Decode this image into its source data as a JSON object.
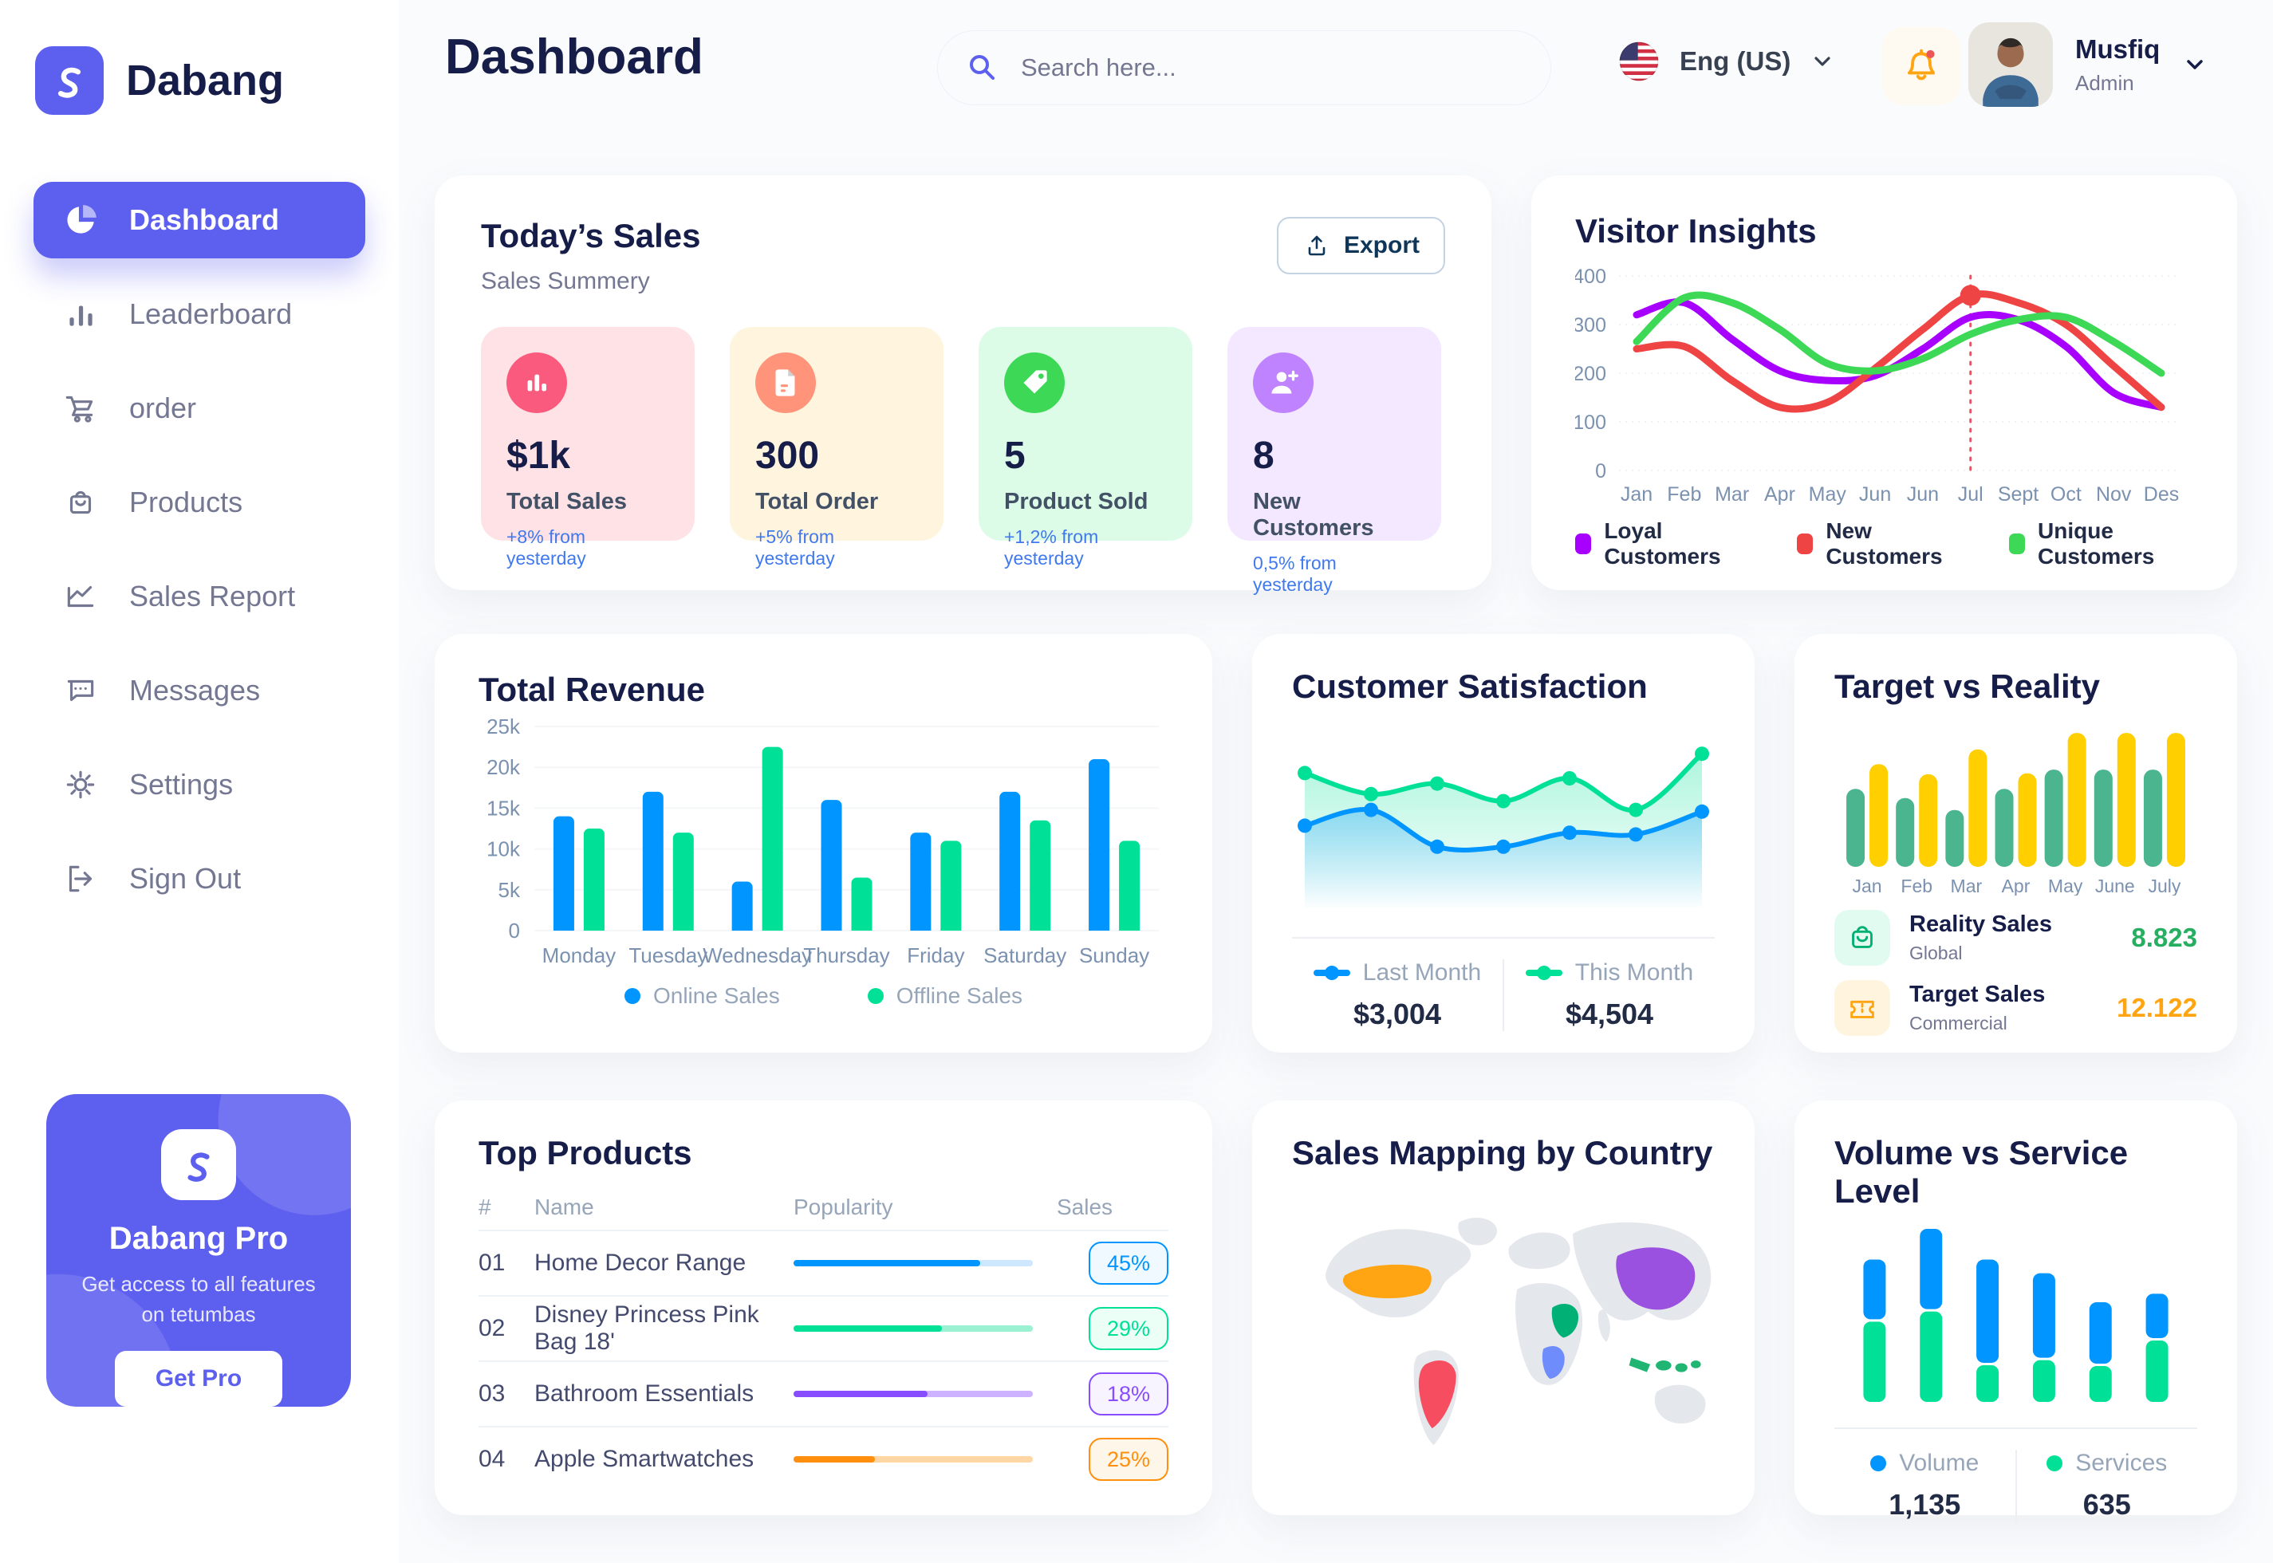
{
  "app": {
    "name": "Dabang"
  },
  "header": {
    "title": "Dashboard",
    "search_placeholder": "Search here...",
    "language": "Eng (US)",
    "user": {
      "name": "Musfiq",
      "role": "Admin"
    }
  },
  "sidebar": {
    "items": [
      {
        "label": "Dashboard",
        "icon": "pie",
        "active": true
      },
      {
        "label": "Leaderboard",
        "icon": "bars",
        "active": false
      },
      {
        "label": "order",
        "icon": "cart",
        "active": false
      },
      {
        "label": "Products",
        "icon": "bag",
        "active": false
      },
      {
        "label": "Sales Report",
        "icon": "chart",
        "active": false
      },
      {
        "label": "Messages",
        "icon": "message",
        "active": false
      },
      {
        "label": "Settings",
        "icon": "gear",
        "active": false
      },
      {
        "label": "Sign Out",
        "icon": "signout",
        "active": false
      }
    ],
    "pro": {
      "title": "Dabang Pro",
      "desc": "Get access to all features on tetumbas",
      "button": "Get Pro"
    }
  },
  "today_sales": {
    "title": "Today’s Sales",
    "subtitle": "Sales Summery",
    "export_label": "Export",
    "cards": [
      {
        "value": "$1k",
        "label": "Total Sales",
        "delta": "+8% from yesterday",
        "bg": "#FFE2E5",
        "circle": "#FA5A7D",
        "icon": "stats"
      },
      {
        "value": "300",
        "label": "Total Order",
        "delta": "+5% from yesterday",
        "bg": "#FFF4DE",
        "circle": "#FF947A",
        "icon": "file"
      },
      {
        "value": "5",
        "label": "Product Sold",
        "delta": "+1,2% from yesterday",
        "bg": "#DCFCE7",
        "circle": "#3CD856",
        "icon": "tag"
      },
      {
        "value": "8",
        "label": "New Customers",
        "delta": "0,5% from yesterday",
        "bg": "#F3E8FF",
        "circle": "#BF83FF",
        "icon": "user-plus"
      }
    ]
  },
  "chart_data": [
    {
      "id": "visitor_insights",
      "type": "line",
      "title": "Visitor Insights",
      "x": [
        "Jan",
        "Feb",
        "Mar",
        "Apr",
        "May",
        "Jun",
        "Jun",
        "Jul",
        "Sept",
        "Oct",
        "Nov",
        "Des"
      ],
      "ylim": [
        0,
        400
      ],
      "y_ticks": [
        0,
        100,
        200,
        300,
        400
      ],
      "series": [
        {
          "name": "Loyal Customers",
          "color": "#A700FF",
          "values": [
            320,
            345,
            270,
            205,
            185,
            195,
            250,
            315,
            310,
            255,
            160,
            130
          ]
        },
        {
          "name": "New Customers",
          "color": "#EF4444",
          "values": [
            250,
            255,
            185,
            130,
            140,
            210,
            290,
            360,
            345,
            300,
            215,
            130
          ]
        },
        {
          "name": "Unique Customers",
          "color": "#3CD856",
          "values": [
            265,
            355,
            345,
            290,
            220,
            205,
            230,
            280,
            310,
            315,
            265,
            200
          ]
        }
      ],
      "highlight": {
        "x_index": 7,
        "series": "New Customers",
        "value": 360
      }
    },
    {
      "id": "total_revenue",
      "type": "bar",
      "title": "Total Revenue",
      "categories": [
        "Monday",
        "Tuesday",
        "Wednesday",
        "Thursday",
        "Friday",
        "Saturday",
        "Sunday"
      ],
      "ylim": [
        0,
        25000
      ],
      "y_tick_labels": [
        "0",
        "5k",
        "10k",
        "15k",
        "20k",
        "25k"
      ],
      "series": [
        {
          "name": "Online Sales",
          "color": "#0095FF",
          "values": [
            14000,
            17000,
            6000,
            16000,
            12000,
            17000,
            21000
          ]
        },
        {
          "name": "Offline Sales",
          "color": "#00E096",
          "values": [
            12500,
            12000,
            22500,
            6500,
            11000,
            13500,
            11000
          ]
        }
      ]
    },
    {
      "id": "customer_satisfaction",
      "type": "area",
      "title": "Customer Satisfaction",
      "ylim": [
        0,
        100
      ],
      "series": [
        {
          "name": "Last Month",
          "color": "#0095FF",
          "total": "$3,004",
          "values": [
            48,
            57,
            36,
            36,
            44,
            43,
            56
          ]
        },
        {
          "name": "This Month",
          "color": "#00E096",
          "total": "$4,504",
          "values": [
            78,
            66,
            72,
            62,
            75,
            57,
            89
          ]
        }
      ]
    },
    {
      "id": "target_vs_reality",
      "type": "bar",
      "title": "Target vs Reality",
      "categories": [
        "Jan",
        "Feb",
        "Mar",
        "Apr",
        "May",
        "June",
        "July"
      ],
      "ylim": [
        0,
        16
      ],
      "series": [
        {
          "name": "Reality Sales",
          "subtitle": "Global",
          "color": "#4AB58E",
          "total": "8.823",
          "total_color": "#27AE60",
          "icon_bg": "#E2FBF1",
          "values": [
            8.5,
            7.5,
            6.2,
            8.5,
            10.6,
            10.6,
            10.6
          ]
        },
        {
          "name": "Target Sales",
          "subtitle": "Commercial",
          "color": "#FFCF00",
          "total": "12.122",
          "total_color": "#FFA412",
          "icon_bg": "#FFF4DE",
          "values": [
            11.2,
            10.1,
            12.8,
            10.2,
            14.6,
            14.6,
            14.6
          ]
        }
      ]
    },
    {
      "id": "volume_vs_service",
      "type": "stacked-bar",
      "title": "Volume vs Service Level",
      "ylim": [
        0,
        1000
      ],
      "series": [
        {
          "name": "Volume",
          "color": "#0095FF",
          "total": "1,135",
          "values": [
            350,
            470,
            605,
            495,
            360,
            260
          ]
        },
        {
          "name": "Services",
          "color": "#00E096",
          "total": "635",
          "values": [
            470,
            530,
            215,
            245,
            210,
            360
          ]
        }
      ]
    }
  ],
  "top_products": {
    "title": "Top Products",
    "headers": [
      "#",
      "Name",
      "Popularity",
      "Sales"
    ],
    "rows": [
      {
        "num": "01",
        "name": "Home Decor Range",
        "popularity": 78,
        "sales": "45%",
        "color": "#0095FF",
        "track": "#CDE7FF",
        "badge_bg": "#F0F9FF"
      },
      {
        "num": "02",
        "name": "Disney Princess Pink Bag 18'",
        "popularity": 62,
        "sales": "29%",
        "color": "#00E096",
        "track": "#9BF2D2",
        "badge_bg": "#EBFFF7"
      },
      {
        "num": "03",
        "name": "Bathroom Essentials",
        "popularity": 56,
        "sales": "18%",
        "color": "#884DFF",
        "track": "#CDB2FF",
        "badge_bg": "#F8F4FF"
      },
      {
        "num": "04",
        "name": "Apple Smartwatches",
        "popularity": 34,
        "sales": "25%",
        "color": "#FF8F0D",
        "track": "#FFD6A4",
        "badge_bg": "#FFF6EA"
      }
    ]
  },
  "sales_map": {
    "title": "Sales Mapping by Country",
    "countries": [
      {
        "name": "United States",
        "color": "#FFA412"
      },
      {
        "name": "Brazil",
        "color": "#F64E60"
      },
      {
        "name": "Saudi Arabia",
        "color": "#00B074"
      },
      {
        "name": "DR Congo",
        "color": "#6E8CFB"
      },
      {
        "name": "China",
        "color": "#9B51E0"
      },
      {
        "name": "Indonesia",
        "color": "#21B573"
      }
    ]
  }
}
